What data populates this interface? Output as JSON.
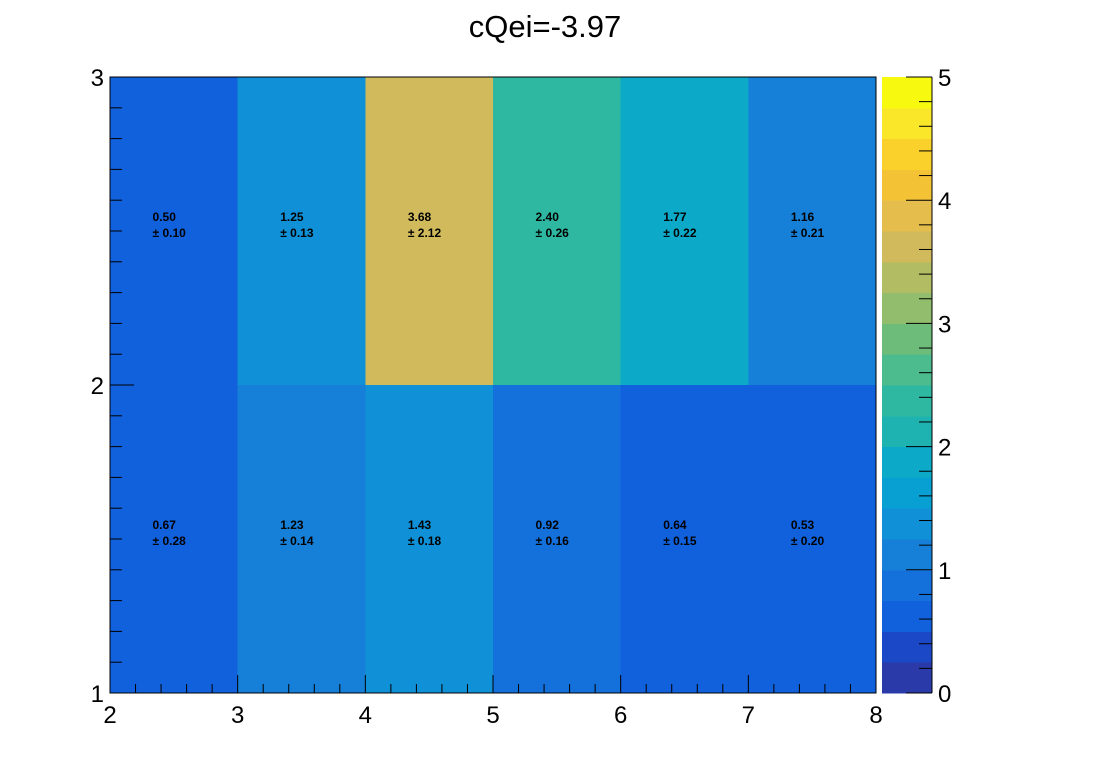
{
  "chart_data": {
    "type": "heatmap",
    "title": "cQei=-3.97",
    "xlabel": "",
    "ylabel": "",
    "x_edges": [
      2,
      3,
      4,
      5,
      6,
      7,
      8
    ],
    "y_edges": [
      1,
      2,
      3
    ],
    "xlim": [
      2,
      8
    ],
    "ylim": [
      1,
      3
    ],
    "x_ticks": [
      "2",
      "3",
      "4",
      "5",
      "6",
      "7",
      "8"
    ],
    "y_ticks": [
      "1",
      "2",
      "3"
    ],
    "cells": [
      {
        "x": 2.5,
        "y": 1.5,
        "value": 0.67,
        "error": 0.28,
        "value_label": "0.67",
        "error_label": "± 0.28"
      },
      {
        "x": 3.5,
        "y": 1.5,
        "value": 1.23,
        "error": 0.14,
        "value_label": "1.23",
        "error_label": "± 0.14"
      },
      {
        "x": 4.5,
        "y": 1.5,
        "value": 1.43,
        "error": 0.18,
        "value_label": "1.43",
        "error_label": "± 0.18"
      },
      {
        "x": 5.5,
        "y": 1.5,
        "value": 0.92,
        "error": 0.16,
        "value_label": "0.92",
        "error_label": "± 0.16"
      },
      {
        "x": 6.5,
        "y": 1.5,
        "value": 0.64,
        "error": 0.15,
        "value_label": "0.64",
        "error_label": "± 0.15"
      },
      {
        "x": 7.5,
        "y": 1.5,
        "value": 0.53,
        "error": 0.2,
        "value_label": "0.53",
        "error_label": "± 0.20"
      },
      {
        "x": 2.5,
        "y": 2.5,
        "value": 0.5,
        "error": 0.1,
        "value_label": "0.50",
        "error_label": "± 0.10"
      },
      {
        "x": 3.5,
        "y": 2.5,
        "value": 1.25,
        "error": 0.13,
        "value_label": "1.25",
        "error_label": "± 0.13"
      },
      {
        "x": 4.5,
        "y": 2.5,
        "value": 3.68,
        "error": 2.12,
        "value_label": "3.68",
        "error_label": "± 2.12"
      },
      {
        "x": 5.5,
        "y": 2.5,
        "value": 2.4,
        "error": 0.26,
        "value_label": "2.40",
        "error_label": "± 0.26"
      },
      {
        "x": 6.5,
        "y": 2.5,
        "value": 1.77,
        "error": 0.22,
        "value_label": "1.77",
        "error_label": "± 0.22"
      },
      {
        "x": 7.5,
        "y": 2.5,
        "value": 1.16,
        "error": 0.21,
        "value_label": "1.16",
        "error_label": "± 0.21"
      }
    ],
    "colorbar": {
      "min": 0,
      "max": 5,
      "ticks": [
        "0",
        "1",
        "2",
        "3",
        "4",
        "5"
      ],
      "palette": [
        "#2a3aa8",
        "#1b48c6",
        "#1160dc",
        "#1470db",
        "#1680d8",
        "#1090d6",
        "#08a0d3",
        "#0caac8",
        "#1eb3b0",
        "#2eb8a1",
        "#4cbb8d",
        "#6ebc79",
        "#92bd6c",
        "#b2bc62",
        "#d0ba5b",
        "#e4bd4d",
        "#f3c235",
        "#fad12b",
        "#fbe72a",
        "#f7fa0e"
      ]
    }
  }
}
